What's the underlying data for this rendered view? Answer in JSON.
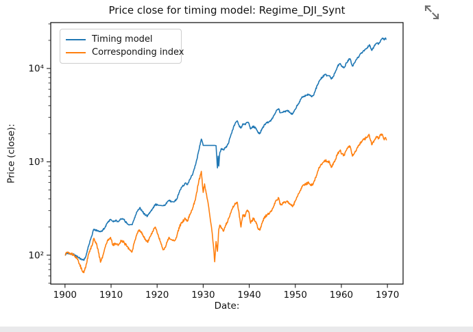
{
  "page": {
    "expand_icon_color": "#6f6f6f",
    "footer_strip_color": "#e9e9eb",
    "background_color": "#ffffff"
  },
  "chart_data": {
    "type": "line",
    "title": "Price close for timing model: Regime_DJI_Synt",
    "xlabel": "Date:",
    "ylabel": "Price (close):",
    "xscale": "linear",
    "yscale": "log",
    "grid": false,
    "xlim": [
      1896.9,
      1973.4
    ],
    "ylim": [
      49,
      31000
    ],
    "x_ticks": [
      1900,
      1910,
      1920,
      1930,
      1940,
      1950,
      1960,
      1970
    ],
    "y_major_ticks": [
      100,
      1000,
      10000
    ],
    "y_tick_labels": [
      "10²",
      "10³",
      "10⁴"
    ],
    "y_minor_ticks": [
      50,
      60,
      70,
      80,
      90,
      200,
      300,
      400,
      500,
      600,
      700,
      800,
      900,
      2000,
      3000,
      4000,
      5000,
      6000,
      7000,
      8000,
      9000,
      20000,
      30000
    ],
    "legend": {
      "position": "upper left"
    },
    "axis_color": "#1a1a1a",
    "series": [
      {
        "name": "Timing model",
        "color": "#1f77b4",
        "points": [
          [
            1900,
            100
          ],
          [
            1900.6,
            105
          ],
          [
            1901.2,
            103
          ],
          [
            1902,
            101
          ],
          [
            1902.6,
            97
          ],
          [
            1903.2,
            93
          ],
          [
            1903.7,
            89
          ],
          [
            1904.1,
            88
          ],
          [
            1904.6,
            100
          ],
          [
            1905.2,
            130
          ],
          [
            1905.8,
            160
          ],
          [
            1906.2,
            188
          ],
          [
            1906.7,
            186
          ],
          [
            1907.1,
            182
          ],
          [
            1907.7,
            178
          ],
          [
            1908.2,
            184
          ],
          [
            1908.8,
            205
          ],
          [
            1909.4,
            230
          ],
          [
            1909.9,
            242
          ],
          [
            1910.4,
            230
          ],
          [
            1911,
            236
          ],
          [
            1911.6,
            228
          ],
          [
            1912.2,
            244
          ],
          [
            1912.8,
            240
          ],
          [
            1913.4,
            220
          ],
          [
            1914,
            212
          ],
          [
            1914.6,
            212
          ],
          [
            1915.1,
            252
          ],
          [
            1915.7,
            295
          ],
          [
            1916.2,
            322
          ],
          [
            1916.8,
            295
          ],
          [
            1917.4,
            268
          ],
          [
            1917.9,
            262
          ],
          [
            1918.5,
            290
          ],
          [
            1919,
            315
          ],
          [
            1919.6,
            348
          ],
          [
            1920.1,
            344
          ],
          [
            1920.7,
            341
          ],
          [
            1921.3,
            338
          ],
          [
            1921.9,
            352
          ],
          [
            1922.5,
            385
          ],
          [
            1923.1,
            375
          ],
          [
            1923.7,
            372
          ],
          [
            1924.3,
            400
          ],
          [
            1924.9,
            490
          ],
          [
            1925.5,
            545
          ],
          [
            1926.1,
            590
          ],
          [
            1926.6,
            570
          ],
          [
            1927.2,
            660
          ],
          [
            1927.8,
            760
          ],
          [
            1928.4,
            950
          ],
          [
            1929,
            1300
          ],
          [
            1929.6,
            1750
          ],
          [
            1930,
            1500
          ],
          [
            1930.3,
            1500
          ],
          [
            1930.8,
            1500
          ],
          [
            1931.3,
            1500
          ],
          [
            1931.8,
            1500
          ],
          [
            1932.2,
            1500
          ],
          [
            1932.5,
            1500
          ],
          [
            1932.8,
            1490
          ],
          [
            1933.1,
            860
          ],
          [
            1933.25,
            1150
          ],
          [
            1933.4,
            900
          ],
          [
            1933.6,
            1250
          ],
          [
            1933.9,
            1380
          ],
          [
            1934.4,
            1350
          ],
          [
            1934.9,
            1420
          ],
          [
            1935.4,
            1550
          ],
          [
            1935.9,
            1850
          ],
          [
            1936.4,
            2200
          ],
          [
            1936.9,
            2550
          ],
          [
            1937.4,
            2750
          ],
          [
            1937.8,
            2450
          ],
          [
            1938.2,
            2300
          ],
          [
            1938.6,
            2550
          ],
          [
            1939.1,
            2500
          ],
          [
            1939.5,
            2650
          ],
          [
            1939.9,
            2600
          ],
          [
            1940.3,
            2250
          ],
          [
            1940.9,
            2400
          ],
          [
            1941.4,
            2280
          ],
          [
            1941.9,
            2080
          ],
          [
            1942.3,
            2020
          ],
          [
            1942.8,
            2250
          ],
          [
            1943.3,
            2500
          ],
          [
            1943.9,
            2620
          ],
          [
            1944.4,
            2700
          ],
          [
            1944.9,
            2850
          ],
          [
            1945.4,
            3150
          ],
          [
            1945.9,
            3550
          ],
          [
            1946.4,
            3700
          ],
          [
            1946.7,
            3350
          ],
          [
            1947.2,
            3380
          ],
          [
            1947.8,
            3480
          ],
          [
            1948.3,
            3560
          ],
          [
            1948.9,
            3350
          ],
          [
            1949.4,
            3250
          ],
          [
            1949.9,
            3600
          ],
          [
            1950.4,
            4000
          ],
          [
            1950.9,
            4400
          ],
          [
            1951.4,
            4900
          ],
          [
            1951.9,
            5050
          ],
          [
            1952.4,
            5150
          ],
          [
            1952.9,
            5250
          ],
          [
            1953.4,
            5050
          ],
          [
            1953.9,
            5120
          ],
          [
            1954.4,
            5900
          ],
          [
            1954.9,
            6800
          ],
          [
            1955.4,
            7600
          ],
          [
            1955.9,
            8100
          ],
          [
            1956.4,
            8600
          ],
          [
            1956.9,
            8400
          ],
          [
            1957.4,
            8350
          ],
          [
            1957.8,
            7700
          ],
          [
            1958.2,
            8200
          ],
          [
            1958.7,
            9200
          ],
          [
            1959.2,
            10600
          ],
          [
            1959.7,
            11300
          ],
          [
            1960.1,
            10600
          ],
          [
            1960.6,
            10200
          ],
          [
            1961.1,
            11500
          ],
          [
            1961.6,
            12400
          ],
          [
            1961.9,
            12700
          ],
          [
            1962.4,
            10600
          ],
          [
            1962.9,
            11500
          ],
          [
            1963.4,
            12700
          ],
          [
            1963.9,
            13700
          ],
          [
            1964.4,
            14800
          ],
          [
            1964.9,
            15600
          ],
          [
            1965.4,
            16200
          ],
          [
            1965.9,
            17300
          ],
          [
            1966.1,
            18000
          ],
          [
            1966.6,
            15600
          ],
          [
            1967.1,
            17200
          ],
          [
            1967.6,
            18600
          ],
          [
            1968.1,
            18400
          ],
          [
            1968.6,
            20200
          ],
          [
            1969,
            21000
          ],
          [
            1969.3,
            20200
          ],
          [
            1969.6,
            21200
          ],
          [
            1969.8,
            20500
          ]
        ]
      },
      {
        "name": "Corresponding index",
        "color": "#ff7f0e",
        "points": [
          [
            1900,
            100
          ],
          [
            1900.6,
            108
          ],
          [
            1901.2,
            104
          ],
          [
            1902,
            100
          ],
          [
            1902.6,
            93
          ],
          [
            1903.2,
            80
          ],
          [
            1903.7,
            68
          ],
          [
            1904.1,
            65
          ],
          [
            1904.6,
            80
          ],
          [
            1905.2,
            105
          ],
          [
            1905.8,
            125
          ],
          [
            1906.2,
            150
          ],
          [
            1906.7,
            138
          ],
          [
            1907.1,
            118
          ],
          [
            1907.7,
            84
          ],
          [
            1908.2,
            98
          ],
          [
            1908.8,
            125
          ],
          [
            1909.4,
            148
          ],
          [
            1909.9,
            155
          ],
          [
            1910.4,
            128
          ],
          [
            1911,
            133
          ],
          [
            1911.6,
            128
          ],
          [
            1912.2,
            142
          ],
          [
            1912.8,
            138
          ],
          [
            1913.4,
            124
          ],
          [
            1914,
            115
          ],
          [
            1914.6,
            110
          ],
          [
            1915.1,
            140
          ],
          [
            1915.7,
            172
          ],
          [
            1916.2,
            186
          ],
          [
            1916.8,
            170
          ],
          [
            1917.4,
            148
          ],
          [
            1917.9,
            138
          ],
          [
            1918.5,
            158
          ],
          [
            1919,
            180
          ],
          [
            1919.6,
            200
          ],
          [
            1920.1,
            168
          ],
          [
            1920.7,
            140
          ],
          [
            1921.3,
            114
          ],
          [
            1921.9,
            126
          ],
          [
            1922.5,
            152
          ],
          [
            1923.1,
            146
          ],
          [
            1923.7,
            142
          ],
          [
            1924.3,
            162
          ],
          [
            1924.9,
            205
          ],
          [
            1925.5,
            228
          ],
          [
            1926.1,
            248
          ],
          [
            1926.6,
            235
          ],
          [
            1927.2,
            278
          ],
          [
            1927.8,
            325
          ],
          [
            1928.4,
            420
          ],
          [
            1929,
            600
          ],
          [
            1929.6,
            790
          ],
          [
            1930,
            470
          ],
          [
            1930.3,
            580
          ],
          [
            1930.8,
            420
          ],
          [
            1931.3,
            300
          ],
          [
            1931.8,
            200
          ],
          [
            1932.2,
            130
          ],
          [
            1932.5,
            85
          ],
          [
            1932.8,
            140
          ],
          [
            1933.1,
            110
          ],
          [
            1933.4,
            190
          ],
          [
            1933.6,
            210
          ],
          [
            1933.9,
            195
          ],
          [
            1934.4,
            180
          ],
          [
            1934.9,
            208
          ],
          [
            1935.4,
            240
          ],
          [
            1935.9,
            280
          ],
          [
            1936.4,
            320
          ],
          [
            1936.9,
            360
          ],
          [
            1937.4,
            370
          ],
          [
            1937.8,
            280
          ],
          [
            1938.2,
            200
          ],
          [
            1938.6,
            270
          ],
          [
            1939.1,
            260
          ],
          [
            1939.5,
            300
          ],
          [
            1939.9,
            290
          ],
          [
            1940.3,
            220
          ],
          [
            1940.9,
            250
          ],
          [
            1941.4,
            230
          ],
          [
            1941.9,
            195
          ],
          [
            1942.3,
            185
          ],
          [
            1942.8,
            220
          ],
          [
            1943.3,
            255
          ],
          [
            1943.9,
            270
          ],
          [
            1944.4,
            280
          ],
          [
            1944.9,
            300
          ],
          [
            1945.4,
            340
          ],
          [
            1945.9,
            390
          ],
          [
            1946.4,
            410
          ],
          [
            1946.7,
            350
          ],
          [
            1947.2,
            355
          ],
          [
            1947.8,
            370
          ],
          [
            1948.3,
            380
          ],
          [
            1948.9,
            350
          ],
          [
            1949.4,
            330
          ],
          [
            1949.9,
            370
          ],
          [
            1950.4,
            420
          ],
          [
            1950.9,
            470
          ],
          [
            1951.4,
            540
          ],
          [
            1951.9,
            560
          ],
          [
            1952.4,
            580
          ],
          [
            1952.9,
            600
          ],
          [
            1953.4,
            570
          ],
          [
            1953.9,
            580
          ],
          [
            1954.4,
            680
          ],
          [
            1954.9,
            800
          ],
          [
            1955.4,
            900
          ],
          [
            1955.9,
            970
          ],
          [
            1956.4,
            1040
          ],
          [
            1956.9,
            1010
          ],
          [
            1957.4,
            1000
          ],
          [
            1957.8,
            870
          ],
          [
            1958.2,
            930
          ],
          [
            1958.7,
            1060
          ],
          [
            1959.2,
            1230
          ],
          [
            1959.7,
            1320
          ],
          [
            1960.1,
            1220
          ],
          [
            1960.6,
            1170
          ],
          [
            1961.1,
            1330
          ],
          [
            1961.6,
            1440
          ],
          [
            1961.9,
            1470
          ],
          [
            1962.4,
            1150
          ],
          [
            1962.9,
            1260
          ],
          [
            1963.4,
            1400
          ],
          [
            1963.9,
            1520
          ],
          [
            1964.4,
            1640
          ],
          [
            1964.9,
            1740
          ],
          [
            1965.4,
            1800
          ],
          [
            1965.9,
            1930
          ],
          [
            1966.1,
            1900
          ],
          [
            1966.6,
            1520
          ],
          [
            1967.1,
            1700
          ],
          [
            1967.6,
            1820
          ],
          [
            1968.1,
            1800
          ],
          [
            1968.6,
            1980
          ],
          [
            1969,
            1900
          ],
          [
            1969.3,
            1720
          ],
          [
            1969.6,
            1820
          ],
          [
            1969.8,
            1700
          ]
        ]
      }
    ]
  }
}
